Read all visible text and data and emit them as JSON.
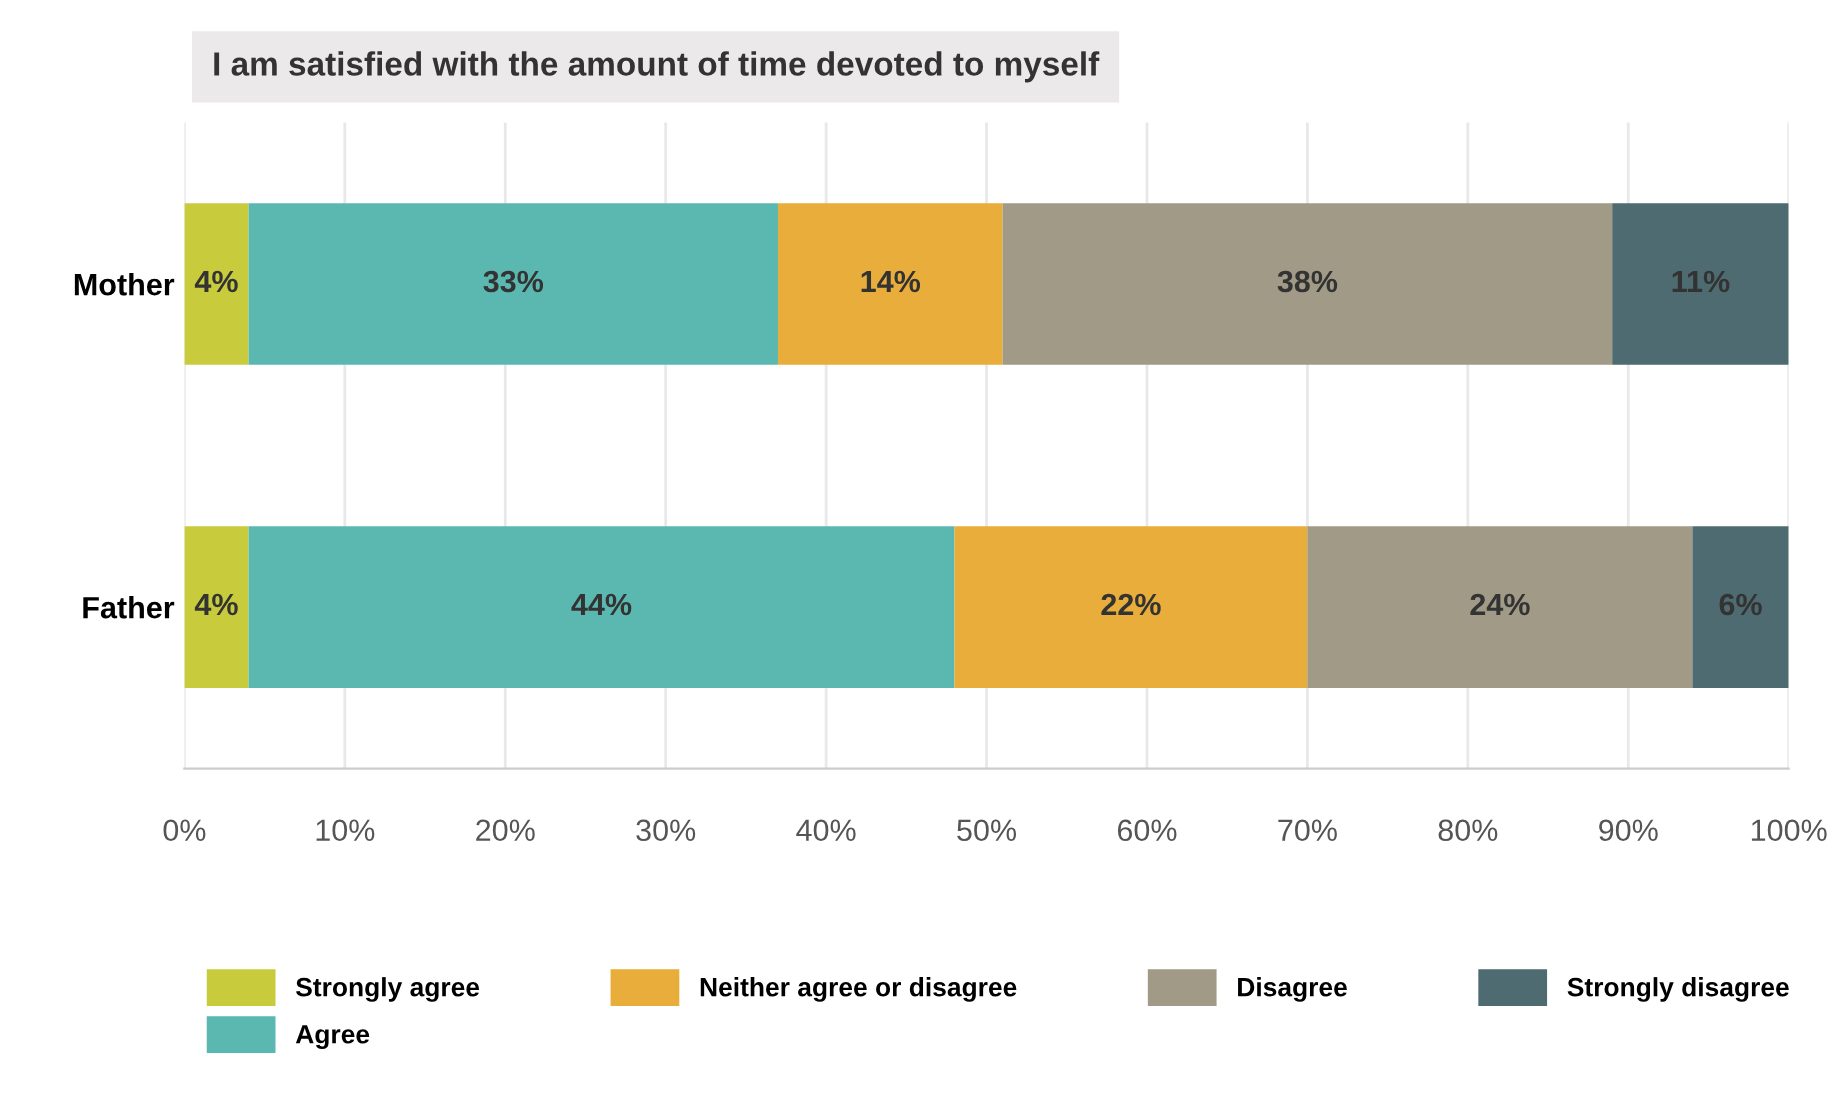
{
  "chart_data": {
    "type": "bar",
    "orientation": "horizontal",
    "stacked": true,
    "title": "I am satisfied with the amount of time devoted to myself",
    "categories": [
      "Mother",
      "Father"
    ],
    "series": [
      {
        "name": "Strongly agree",
        "color": "#c8cc3c",
        "values": [
          4,
          4
        ],
        "value_labels": [
          "4%",
          "4%"
        ]
      },
      {
        "name": "Agree",
        "color": "#5bb8b0",
        "values": [
          33,
          44
        ],
        "value_labels": [
          "33%",
          "44%"
        ]
      },
      {
        "name": "Neither agree or disagree",
        "color": "#e8ad3a",
        "values": [
          14,
          22
        ],
        "value_labels": [
          "14%",
          "22%"
        ]
      },
      {
        "name": "Disagree",
        "color": "#a09a86",
        "values": [
          38,
          24
        ],
        "value_labels": [
          "38%",
          "24%"
        ]
      },
      {
        "name": "Strongly disagree",
        "color": "#4d6b70",
        "values": [
          11,
          6
        ],
        "value_labels": [
          "11%",
          "6%"
        ]
      }
    ],
    "xlim": [
      0,
      100
    ],
    "xticks": [
      {
        "value": 0,
        "label": "0%"
      },
      {
        "value": 10,
        "label": "10%"
      },
      {
        "value": 20,
        "label": "20%"
      },
      {
        "value": 30,
        "label": "30%"
      },
      {
        "value": 40,
        "label": "40%"
      },
      {
        "value": 50,
        "label": "50%"
      },
      {
        "value": 60,
        "label": "60%"
      },
      {
        "value": 70,
        "label": "70%"
      },
      {
        "value": 80,
        "label": "80%"
      },
      {
        "value": 90,
        "label": "90%"
      },
      {
        "value": 100,
        "label": "100%"
      }
    ],
    "grid": "x",
    "legend": "bottom"
  }
}
